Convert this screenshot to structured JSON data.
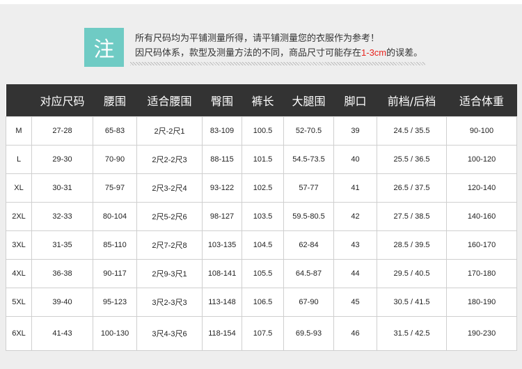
{
  "note": {
    "badge": "注",
    "line1": "所有尺码均为平铺测量所得，请平铺测量您的衣服作为参考！",
    "line2_pre": "因尺码体系，款型及测量方法的不同，商品尺寸可能存在",
    "line2_highlight": "1-3cm",
    "line2_post": "的误差。",
    "highlight_color": "#e8231d",
    "badge_color": "#6fcbc4"
  },
  "table": {
    "headers": [
      "",
      "对应尺码",
      "腰围",
      "适合腰围",
      "臀围",
      "裤长",
      "大腿围",
      "脚口",
      "前档/后档",
      "适合体重"
    ],
    "rows": [
      [
        "M",
        "27-28",
        "65-83",
        "2尺-2尺1",
        "83-109",
        "100.5",
        "52-70.5",
        "39",
        "24.5 / 35.5",
        "90-100"
      ],
      [
        "L",
        "29-30",
        "70-90",
        "2尺2-2尺3",
        "88-115",
        "101.5",
        "54.5-73.5",
        "40",
        "25.5 / 36.5",
        "100-120"
      ],
      [
        "XL",
        "30-31",
        "75-97",
        "2尺3-2尺4",
        "93-122",
        "102.5",
        "57-77",
        "41",
        "26.5 / 37.5",
        "120-140"
      ],
      [
        "2XL",
        "32-33",
        "80-104",
        "2尺5-2尺6",
        "98-127",
        "103.5",
        "59.5-80.5",
        "42",
        "27.5 / 38.5",
        "140-160"
      ],
      [
        "3XL",
        "31-35",
        "85-110",
        "2尺7-2尺8",
        "103-135",
        "104.5",
        "62-84",
        "43",
        "28.5 / 39.5",
        "160-170"
      ],
      [
        "4XL",
        "36-38",
        "90-117",
        "2尺9-3尺1",
        "108-141",
        "105.5",
        "64.5-87",
        "44",
        "29.5 / 40.5",
        "170-180"
      ],
      [
        "5XL",
        "39-40",
        "95-123",
        "3尺2-3尺3",
        "113-148",
        "106.5",
        "67-90",
        "45",
        "30.5 / 41.5",
        "180-190"
      ],
      [
        "6XL",
        "41-43",
        "100-130",
        "3尺4-3尺6",
        "118-154",
        "107.5",
        "69.5-93",
        "46",
        "31.5 / 42.5",
        "190-230"
      ]
    ]
  }
}
